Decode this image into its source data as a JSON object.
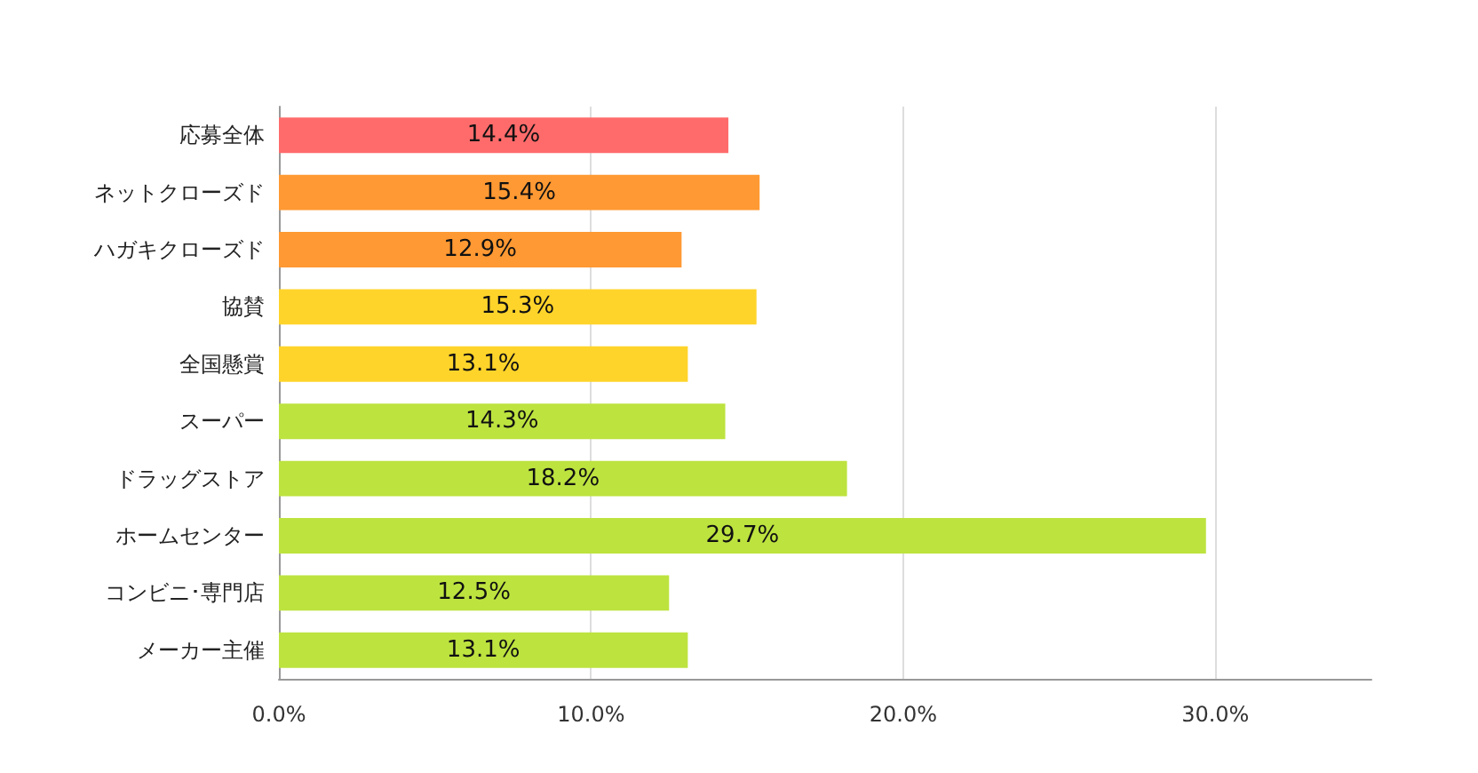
{
  "chart_data": {
    "type": "bar",
    "orientation": "horizontal",
    "categories": [
      "応募全体",
      "ネットクローズド",
      "ハガキクローズド",
      "協賛",
      "全国懸賞",
      "スーパー",
      "ドラッグストア",
      "ホームセンター",
      "コンビニ･専門店",
      "メーカー主催"
    ],
    "values": [
      14.4,
      15.4,
      12.9,
      15.3,
      13.1,
      14.3,
      18.2,
      29.7,
      12.5,
      13.1
    ],
    "value_labels": [
      "14.4%",
      "15.4%",
      "12.9%",
      "15.3%",
      "13.1%",
      "14.3%",
      "18.2%",
      "29.7%",
      "12.5%",
      "13.1%"
    ],
    "colors": [
      "#ff6b6b",
      "#ff9933",
      "#ff9933",
      "#ffd42a",
      "#ffd42a",
      "#bde33f",
      "#bde33f",
      "#bde33f",
      "#bde33f",
      "#bde33f"
    ],
    "xlim": [
      0,
      35
    ],
    "xticks": [
      {
        "value": 0,
        "label": "0.0%"
      },
      {
        "value": 10,
        "label": "10.0%"
      },
      {
        "value": 20,
        "label": "20.0%"
      },
      {
        "value": 30,
        "label": "30.0%"
      }
    ],
    "grid": "x"
  }
}
